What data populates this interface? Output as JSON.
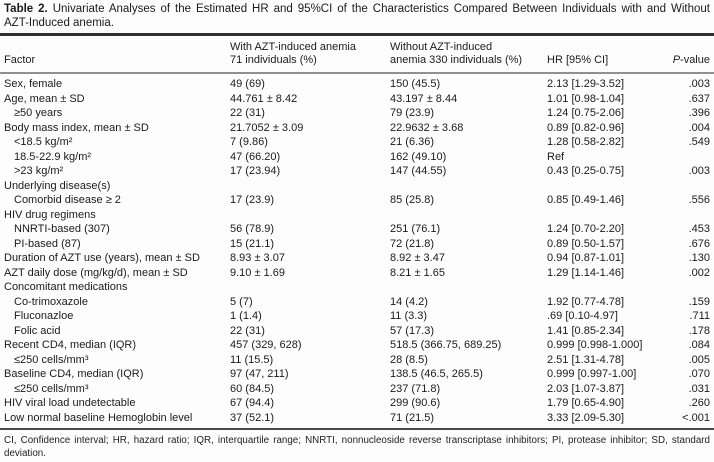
{
  "title": {
    "label": "Table 2.",
    "line1_rest": "Univariate Analyses of the Estimated HR and 95%CI of the Characteristics Compared Between Individuals with and Without",
    "line2": "AZT-Induced anemia."
  },
  "table": {
    "headers": {
      "factor": "Factor",
      "with_line1": "With AZT-induced anemia",
      "with_line2": "71 individuals (%)",
      "without_line1": "Without AZT-induced",
      "without_line2": "anemia 330 individuals (%)",
      "hr": "HR [95% CI]",
      "p_italic": "P",
      "p_rest": "-value"
    },
    "rows": [
      {
        "factor": "Sex, female",
        "indent": false,
        "with": "49 (69)",
        "without": "150 (45.5)",
        "hr": "2.13 [1.29-3.52]",
        "p": ".003"
      },
      {
        "factor": "Age, mean ± SD",
        "indent": false,
        "with": "44.761 ± 8.42",
        "without": "43.197 ± 8.44",
        "hr": "1.01 [0.98-1.04]",
        "p": ".637"
      },
      {
        "factor": "≥50 years",
        "indent": true,
        "with": "22 (31)",
        "without": "79 (23.9)",
        "hr": "1.24 [0.75-2.06]",
        "p": ".396"
      },
      {
        "factor": "Body mass index, mean ± SD",
        "indent": false,
        "with": "21.7052 ± 3.09",
        "without": "22.9632 ± 3.68",
        "hr": "0.89 [0.82-0.96]",
        "p": ".004"
      },
      {
        "factor": "<18.5 kg/m²",
        "indent": true,
        "with": "7 (9.86)",
        "without": "21 (6.36)",
        "hr": "1.28 [0.58-2.82]",
        "p": ".549"
      },
      {
        "factor": "18.5-22.9 kg/m²",
        "indent": true,
        "with": "47 (66.20)",
        "without": "162 (49.10)",
        "hr": "Ref",
        "p": ""
      },
      {
        "factor": ">23 kg/m²",
        "indent": true,
        "with": "17 (23.94)",
        "without": "147 (44.55)",
        "hr": "0.43 [0.25-0.75]",
        "p": ".003"
      },
      {
        "factor": "Underlying disease(s)",
        "indent": false,
        "with": "",
        "without": "",
        "hr": "",
        "p": ""
      },
      {
        "factor": "Comorbid disease ≥ 2",
        "indent": true,
        "with": "17 (23.9)",
        "without": "85 (25.8)",
        "hr": "0.85 [0.49-1.46]",
        "p": ".556"
      },
      {
        "factor": "HIV drug regimens",
        "indent": false,
        "with": "",
        "without": "",
        "hr": "",
        "p": ""
      },
      {
        "factor": "NNRTI-based (307)",
        "indent": true,
        "with": "56 (78.9)",
        "without": "251 (76.1)",
        "hr": "1.24 [0.70-2.20]",
        "p": ".453"
      },
      {
        "factor": "PI-based (87)",
        "indent": true,
        "with": "15 (21.1)",
        "without": "72 (21.8)",
        "hr": "0.89 [0.50-1.57]",
        "p": ".676"
      },
      {
        "factor": "Duration of AZT use (years), mean ± SD",
        "indent": false,
        "with": "8.93 ± 3.07",
        "without": "8.92 ± 3.47",
        "hr": "0.94 [0.87-1.01]",
        "p": ".130"
      },
      {
        "factor": "AZT daily dose (mg/kg/d), mean ± SD",
        "indent": false,
        "with": "9.10 ± 1.69",
        "without": "8.21 ± 1.65",
        "hr": "1.29 [1.14-1.46]",
        "p": ".002"
      },
      {
        "factor": "Concomitant medications",
        "indent": false,
        "with": "",
        "without": "",
        "hr": "",
        "p": ""
      },
      {
        "factor": "Co-trimoxazole",
        "indent": true,
        "with": "5 (7)",
        "without": "14 (4.2)",
        "hr": "1.92 [0.77-4.78]",
        "p": ".159"
      },
      {
        "factor": "Fluconazloe",
        "indent": true,
        "with": "1 (1.4)",
        "without": "11 (3.3)",
        "hr": ".69 [0.10-4.97]",
        "p": ".711"
      },
      {
        "factor": "Folic acid",
        "indent": true,
        "with": "22 (31)",
        "without": "57 (17.3)",
        "hr": "1.41 [0.85-2.34]",
        "p": ".178"
      },
      {
        "factor": "Recent CD4, median (IQR)",
        "indent": false,
        "with": "457 (329, 628)",
        "without": "518.5 (366.75, 689.25)",
        "hr": "0.999 [0.998-1.000]",
        "p": ".084"
      },
      {
        "factor": "≤250 cells/mm³",
        "indent": true,
        "with": "11 (15.5)",
        "without": "28 (8.5)",
        "hr": "2.51 [1.31-4.78]",
        "p": ".005"
      },
      {
        "factor": "Baseline CD4, median (IQR)",
        "indent": false,
        "with": "97 (47, 211)",
        "without": "138.5 (46.5, 265.5)",
        "hr": "0.999 [0.997-1.00]",
        "p": ".070"
      },
      {
        "factor": "≤250 cells/mm³",
        "indent": true,
        "with": "60 (84.5)",
        "without": "237 (71.8)",
        "hr": "2.03 [1.07-3.87]",
        "p": ".031"
      },
      {
        "factor": "HIV viral load undetectable",
        "indent": false,
        "with": "67 (94.4)",
        "without": "299 (90.6)",
        "hr": "1.79 [0.65-4.90]",
        "p": ".260"
      },
      {
        "factor": "Low normal baseline Hemoglobin level",
        "indent": false,
        "with": "37 (52.1)",
        "without": "71 (21.5)",
        "hr": "3.33 [2.09-5.30]",
        "p": "<.001"
      }
    ]
  },
  "footnote": "CI, Confidence interval; HR, hazard ratio; IQR, interquartile range; NNRTI, nonnucleoside reverse transcriptase inhibitors; PI, protease inhibitor; SD, standard deviation."
}
